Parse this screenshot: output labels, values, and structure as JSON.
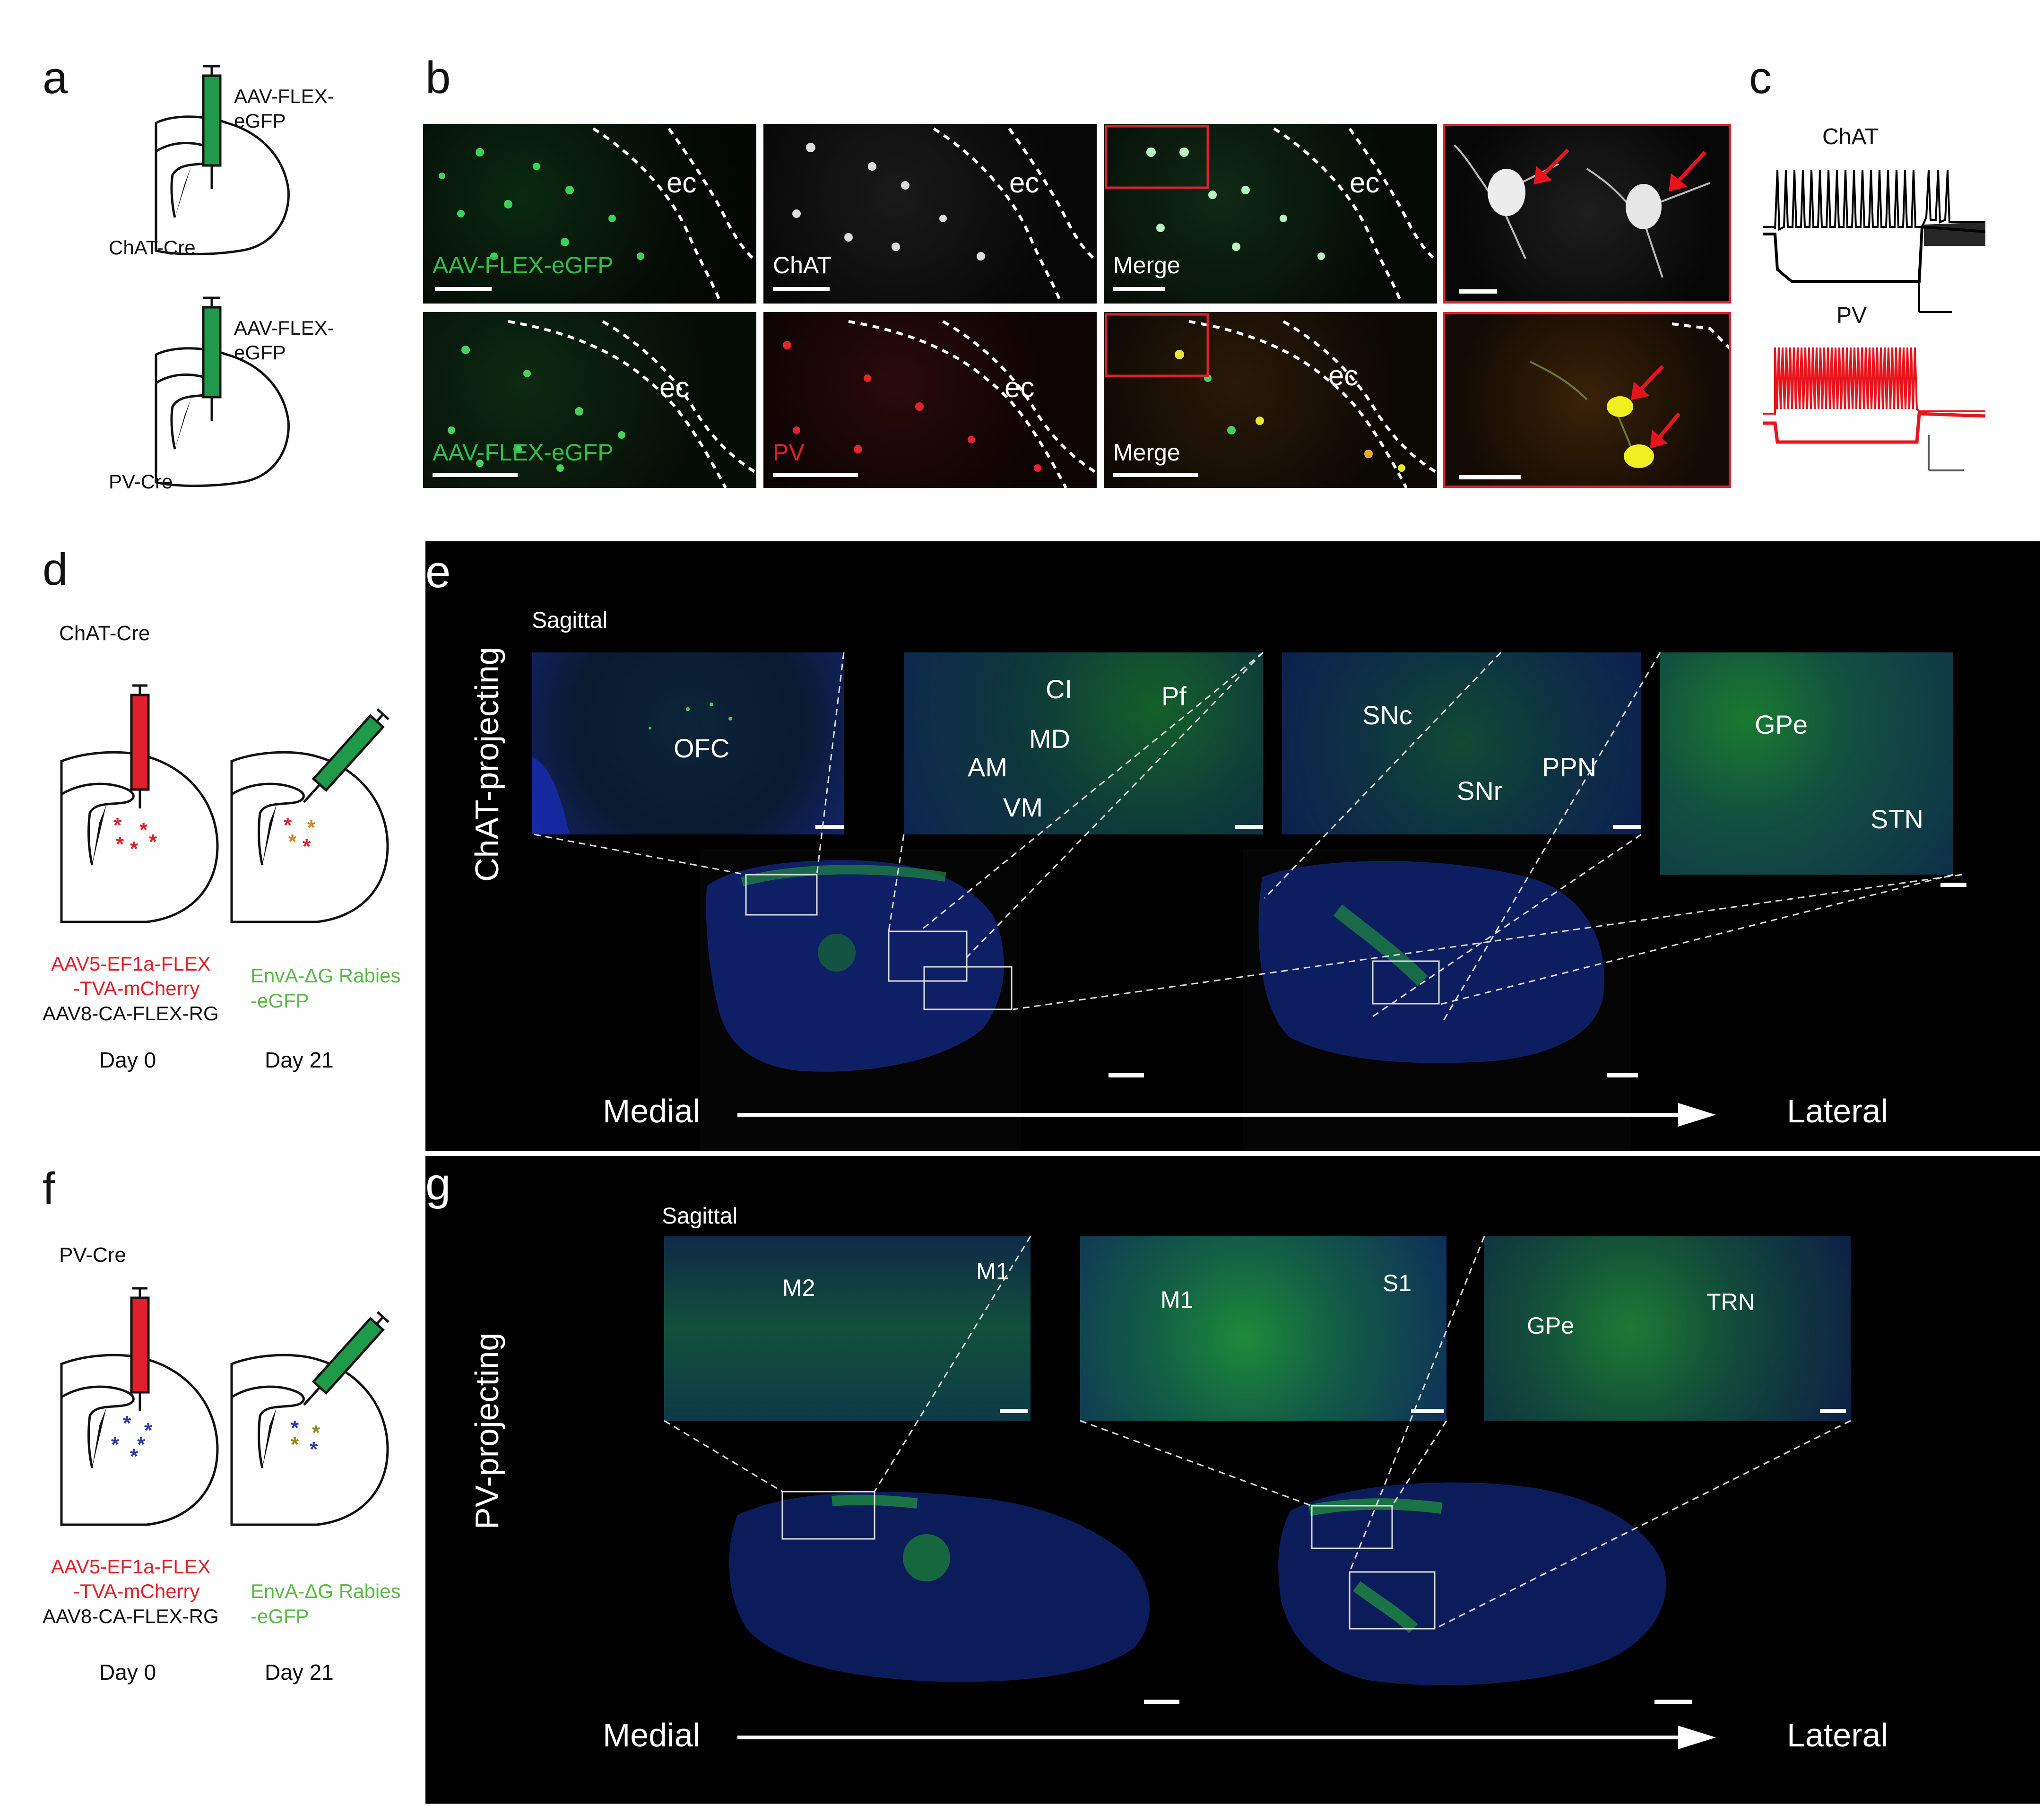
{
  "panels": {
    "a": {
      "letter": "a",
      "top": {
        "virus": "AAV-FLEX-\neGFP",
        "virus_l1": "AAV-FLEX-",
        "virus_l2": "eGFP",
        "mouse": "ChAT-Cre"
      },
      "bottom": {
        "virus_l1": "AAV-FLEX-",
        "virus_l2": "eGFP",
        "mouse": "PV-Cre"
      }
    },
    "b": {
      "letter": "b",
      "row1": {
        "p1": "AAV-FLEX-eGFP",
        "p2": "ChAT",
        "p3": "Merge",
        "ec": "ec"
      },
      "row2": {
        "p1": "AAV-FLEX-eGFP",
        "p2": "PV",
        "p3": "Merge",
        "ec": "ec"
      },
      "colors": {
        "green": "#2fbf4a",
        "red": "#e0202a",
        "grey": "#d8d8d8",
        "yellow": "#e8e830",
        "box": "#d8242c"
      }
    },
    "c": {
      "letter": "c",
      "trace1": "ChAT",
      "trace2": "PV"
    },
    "d": {
      "letter": "d",
      "mouse": "ChAT-Cre",
      "v1_l1": "AAV5-EF1a-FLEX",
      "v1_l2": "-TVA-mCherry",
      "v2": "AAV8-CA-FLEX-RG",
      "rabies_l1": "EnvA-ΔG Rabies",
      "rabies_l2": "-eGFP",
      "day0": "Day 0",
      "day21": "Day 21"
    },
    "e": {
      "letter": "e",
      "side": "ChAT-projecting",
      "plane": "Sagittal",
      "insets": [
        {
          "labels": [
            "OFC"
          ]
        },
        {
          "labels": [
            "CI",
            "Pf",
            "MD",
            "AM",
            "VM"
          ]
        },
        {
          "labels": [
            "SNc",
            "SNr",
            "PPN"
          ]
        },
        {
          "labels": [
            "GPe",
            "STN"
          ]
        }
      ],
      "medial": "Medial",
      "lateral": "Lateral"
    },
    "f": {
      "letter": "f",
      "mouse": "PV-Cre",
      "v1_l1": "AAV5-EF1a-FLEX",
      "v1_l2": "-TVA-mCherry",
      "v2": "AAV8-CA-FLEX-RG",
      "rabies_l1": "EnvA-ΔG Rabies",
      "rabies_l2": "-eGFP",
      "day0": "Day 0",
      "day21": "Day 21"
    },
    "g": {
      "letter": "g",
      "side": "PV-projecting",
      "plane": "Sagittal",
      "insets": [
        {
          "labels": [
            "M2",
            "M1"
          ]
        },
        {
          "labels": [
            "M1",
            "S1"
          ]
        },
        {
          "labels": [
            "GPe",
            "TRN"
          ]
        }
      ],
      "medial": "Medial",
      "lateral": "Lateral"
    }
  },
  "colors": {
    "red_text": "#e0202a",
    "green_text": "#5ab846",
    "syringe_red": "#e0202a",
    "syringe_green": "#1f9a4a",
    "star_red": "#d8242c",
    "star_blue": "#2a3aa8"
  }
}
